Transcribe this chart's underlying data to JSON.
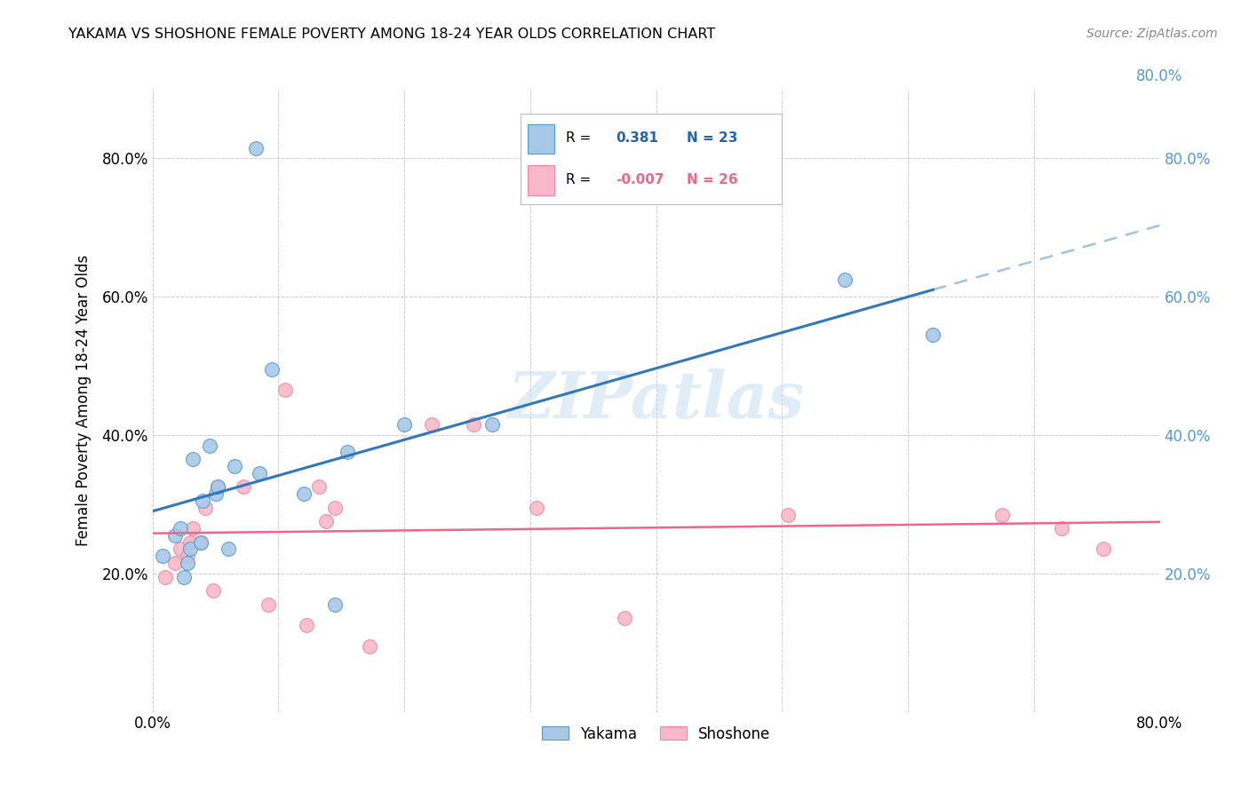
{
  "title": "YAKAMA VS SHOSHONE FEMALE POVERTY AMONG 18-24 YEAR OLDS CORRELATION CHART",
  "source": "Source: ZipAtlas.com",
  "ylabel": "Female Poverty Among 18-24 Year Olds",
  "xlim": [
    0.0,
    0.8
  ],
  "ylim": [
    0.0,
    0.9
  ],
  "yakama_r": 0.381,
  "yakama_n": 23,
  "shoshone_r": -0.007,
  "shoshone_n": 26,
  "yakama_color": "#a8c8e8",
  "shoshone_color": "#f8b8c8",
  "yakama_edge_color": "#5599cc",
  "shoshone_edge_color": "#ee88aa",
  "yakama_line_color": "#3377bb",
  "shoshone_line_color": "#ee6688",
  "grid_color": "#cccccc",
  "yakama_x": [
    0.008,
    0.018,
    0.022,
    0.025,
    0.028,
    0.03,
    0.032,
    0.038,
    0.04,
    0.045,
    0.05,
    0.052,
    0.06,
    0.065,
    0.085,
    0.095,
    0.12,
    0.145,
    0.155,
    0.2,
    0.27,
    0.55,
    0.62
  ],
  "yakama_y": [
    0.225,
    0.255,
    0.265,
    0.195,
    0.215,
    0.235,
    0.365,
    0.245,
    0.305,
    0.385,
    0.315,
    0.325,
    0.235,
    0.355,
    0.345,
    0.495,
    0.315,
    0.155,
    0.375,
    0.415,
    0.415,
    0.625,
    0.545
  ],
  "yakama_outlier_x": [
    0.082
  ],
  "yakama_outlier_y": [
    0.815
  ],
  "shoshone_x": [
    0.01,
    0.018,
    0.022,
    0.028,
    0.03,
    0.032,
    0.038,
    0.042,
    0.048,
    0.052,
    0.072,
    0.092,
    0.105,
    0.122,
    0.132,
    0.138,
    0.145,
    0.172,
    0.222,
    0.255,
    0.305,
    0.375,
    0.505,
    0.675,
    0.722,
    0.755
  ],
  "shoshone_y": [
    0.195,
    0.215,
    0.235,
    0.225,
    0.245,
    0.265,
    0.245,
    0.295,
    0.175,
    0.325,
    0.325,
    0.155,
    0.465,
    0.125,
    0.325,
    0.275,
    0.295,
    0.095,
    0.415,
    0.415,
    0.295,
    0.135,
    0.285,
    0.285,
    0.265,
    0.235
  ],
  "legend_r_yakama": "  0.381",
  "legend_n_yakama": "N = 23",
  "legend_r_shoshone": "-0.007",
  "legend_n_shoshone": "N = 26"
}
